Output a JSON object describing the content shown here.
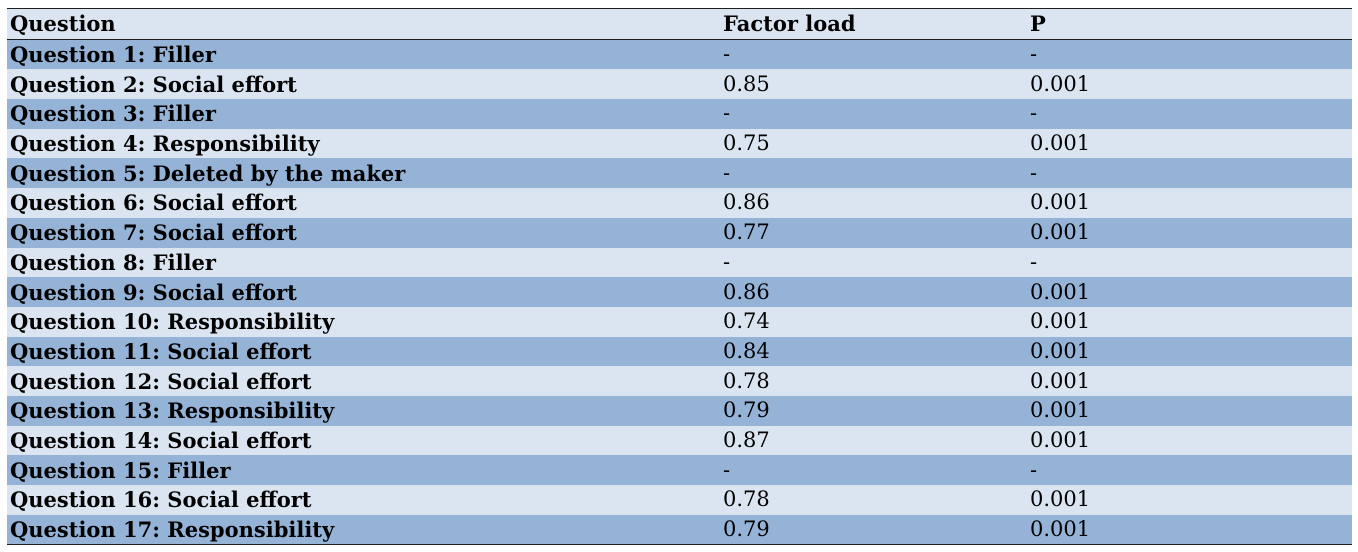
{
  "table": {
    "headers": [
      "Question",
      "Factor load",
      "P"
    ],
    "rows": [
      [
        "Question 1: Filler",
        "-",
        "-"
      ],
      [
        "Question 2: Social effort",
        "0.85",
        "0.001"
      ],
      [
        "Question 3: Filler",
        "-",
        "-"
      ],
      [
        "Question 4: Responsibility",
        "0.75",
        "0.001"
      ],
      [
        "Question 5: Deleted by the maker",
        "-",
        "-"
      ],
      [
        "Question 6: Social effort",
        "0.86",
        "0.001"
      ],
      [
        "Question 7: Social effort",
        "0.77",
        "0.001"
      ],
      [
        "Question 8: Filler",
        "-",
        "-"
      ],
      [
        "Question 9: Social effort",
        "0.86",
        "0.001"
      ],
      [
        "Question 10: Responsibility",
        "0.74",
        "0.001"
      ],
      [
        "Question 11: Social effort",
        "0.84",
        "0.001"
      ],
      [
        "Question 12: Social effort",
        "0.78",
        "0.001"
      ],
      [
        "Question 13: Responsibility",
        "0.79",
        "0.001"
      ],
      [
        "Question 14: Social effort",
        "0.87",
        "0.001"
      ],
      [
        "Question 15: Filler",
        "-",
        "-"
      ],
      [
        "Question 16: Social effort",
        "0.78",
        "0.001"
      ],
      [
        "Question 17: Responsibility",
        "0.79",
        "0.001"
      ]
    ]
  },
  "colors": {
    "row_dark": "#95b3d7",
    "row_light": "#dbe5f1",
    "rule": "#1f1f1f"
  }
}
